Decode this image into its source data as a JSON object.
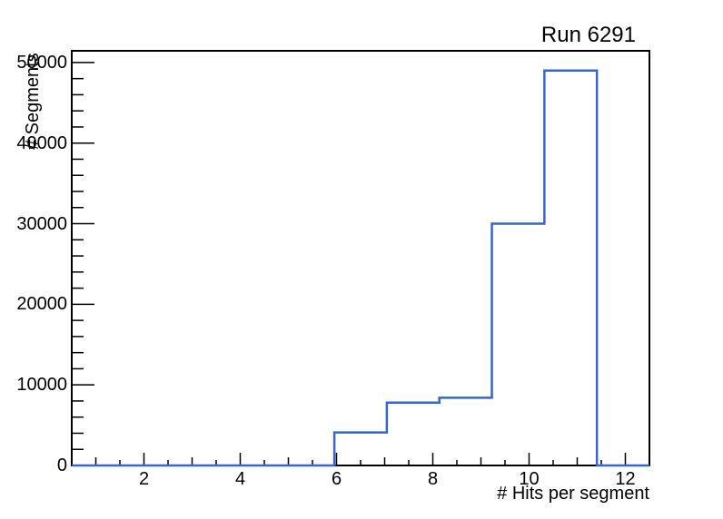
{
  "chart_data": {
    "type": "bar",
    "subtype": "step-histogram",
    "title": "Run 6291",
    "xlabel": "# Hits per segment",
    "ylabel": "# Segments",
    "xlim": [
      0.5,
      12.5
    ],
    "ylim": [
      0,
      51450
    ],
    "grid": false,
    "legend": null,
    "line_color": "#3866c6",
    "axis_color": "#000000",
    "background_color": "#ffffff",
    "bin_edges": [
      0.5,
      1.591,
      2.682,
      3.773,
      4.864,
      5.955,
      7.045,
      8.136,
      9.227,
      10.318,
      11.409,
      12.5
    ],
    "bin_values": [
      0,
      0,
      0,
      0,
      0,
      4100,
      7800,
      8400,
      30000,
      49000,
      0
    ],
    "x_tick_values": [
      2,
      4,
      6,
      8,
      10,
      12
    ],
    "x_tick_labels": [
      "2",
      "4",
      "6",
      "8",
      "10",
      "12"
    ],
    "x_minor_tick_step": 0.5,
    "y_tick_values": [
      0,
      10000,
      20000,
      30000,
      40000,
      50000
    ],
    "y_tick_labels": [
      "0",
      "10000",
      "20000",
      "30000",
      "40000",
      "50000"
    ],
    "y_minor_tick_step": 2000
  }
}
